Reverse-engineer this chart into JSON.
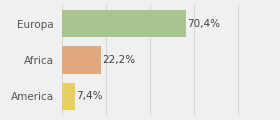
{
  "categories": [
    "Europa",
    "Africa",
    "America"
  ],
  "values": [
    70.4,
    22.2,
    7.4
  ],
  "labels": [
    "70,4%",
    "22,2%",
    "7,4%"
  ],
  "bar_colors": [
    "#a8c490",
    "#e0a87c",
    "#e8d060"
  ],
  "background_color": "#f0f0f0",
  "xlim": [
    0,
    105
  ],
  "bar_height": 0.75,
  "label_fontsize": 7.5,
  "tick_fontsize": 7.5
}
